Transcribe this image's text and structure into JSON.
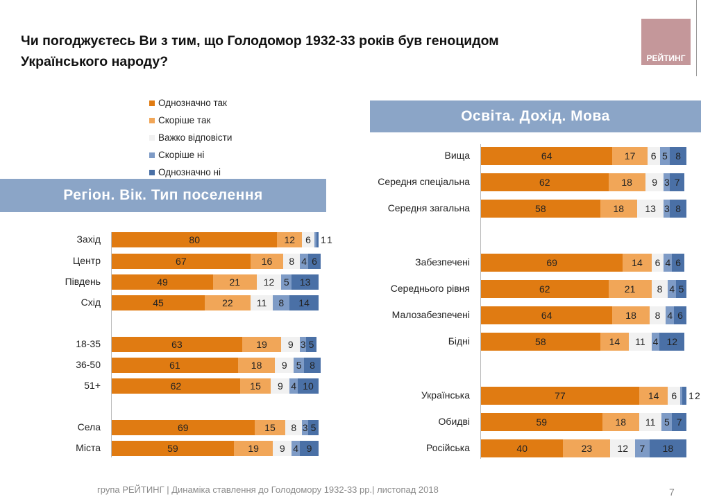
{
  "title": "Чи погоджуєтесь Ви з тим, що Голодомор 1932-33 років був геноцидом Українського народу?",
  "logo_text": "РЕЙТИНГ",
  "footer": "група РЕЙТИНГ  |  Динаміка ставлення до Голодомору 1932-33 рр.|  листопад  2018",
  "page_number": "7",
  "chart_data": [
    {
      "type": "bar",
      "orientation": "horizontal",
      "stacked": true,
      "title": "Регіон. Вік. Тип поселення",
      "legend": [
        "Однозначно так",
        "Скоріше так",
        "Важко відповісти",
        "Скоріше ні",
        "Однозначно ні"
      ],
      "legend_placement": "top",
      "colors": [
        "#E07B12",
        "#F1A658",
        "#F1F1F1",
        "#7E9BC6",
        "#4A70A6"
      ],
      "categories": [
        "Захід",
        "Центр",
        "Південь",
        "Схід",
        "18-35",
        "36-50",
        "51+",
        "Села",
        "Міста"
      ],
      "groups": [
        [
          0,
          1,
          2,
          3
        ],
        [
          4,
          5,
          6
        ],
        [
          7,
          8
        ]
      ],
      "values": [
        [
          80,
          12,
          6,
          1,
          1
        ],
        [
          67,
          16,
          8,
          4,
          6
        ],
        [
          49,
          21,
          12,
          5,
          13
        ],
        [
          45,
          22,
          11,
          8,
          14
        ],
        [
          63,
          19,
          9,
          3,
          5
        ],
        [
          61,
          18,
          9,
          5,
          8
        ],
        [
          62,
          15,
          9,
          4,
          10
        ],
        [
          69,
          15,
          8,
          3,
          5
        ],
        [
          59,
          19,
          9,
          4,
          9
        ]
      ],
      "labels": [
        [
          "80",
          "12",
          "6",
          "1",
          "1"
        ],
        [
          "67",
          "16",
          "8",
          "4",
          "6"
        ],
        [
          "49",
          "21",
          "12",
          "5",
          "13"
        ],
        [
          "45",
          "22",
          "11",
          "8",
          "14"
        ],
        [
          "63",
          "19",
          "9",
          "3",
          "5"
        ],
        [
          "61",
          "18",
          "9",
          "5",
          "8"
        ],
        [
          "62",
          "15",
          "9",
          "4",
          "10"
        ],
        [
          "69",
          "15",
          "8",
          "3",
          "5"
        ],
        [
          "59",
          "19",
          "9",
          "4",
          "9"
        ]
      ]
    },
    {
      "type": "bar",
      "orientation": "horizontal",
      "stacked": true,
      "title": "Освіта. Дохід. Мова",
      "categories": [
        "Вища",
        "Середня спеціальна",
        "Середня загальна",
        "Забезпечені",
        "Середнього рівня",
        "Малозабезпечені",
        "Бідні",
        "Українська",
        "Обидві",
        "Російська"
      ],
      "groups": [
        [
          0,
          1,
          2
        ],
        [
          3,
          4,
          5,
          6
        ],
        [
          7,
          8,
          9
        ]
      ],
      "values": [
        [
          64,
          17,
          6,
          5,
          8
        ],
        [
          62,
          18,
          9,
          3,
          7
        ],
        [
          58,
          18,
          13,
          3,
          8
        ],
        [
          69,
          14,
          6,
          4,
          6
        ],
        [
          62,
          21,
          8,
          4,
          5
        ],
        [
          64,
          18,
          8,
          4,
          6
        ],
        [
          58,
          14,
          11,
          4,
          12
        ],
        [
          77,
          14,
          6,
          1,
          2
        ],
        [
          59,
          18,
          11,
          5,
          7
        ],
        [
          40,
          23,
          12,
          7,
          18
        ]
      ],
      "labels": [
        [
          "64",
          "17",
          "6",
          "5",
          "8"
        ],
        [
          "62",
          "18",
          "9",
          "3",
          "7"
        ],
        [
          "58",
          "18",
          "13",
          "3",
          "8"
        ],
        [
          "69",
          "14",
          "6",
          "4",
          "6"
        ],
        [
          "62",
          "21",
          "8",
          "4",
          "5"
        ],
        [
          "64",
          "18",
          "8",
          "4",
          "6"
        ],
        [
          "58",
          "14",
          "11",
          "4",
          "12"
        ],
        [
          "77",
          "14",
          "6",
          "1",
          "2"
        ],
        [
          "59",
          "18",
          "11",
          "5",
          "7"
        ],
        [
          "40",
          "23",
          "12",
          "7",
          "18"
        ]
      ]
    }
  ]
}
